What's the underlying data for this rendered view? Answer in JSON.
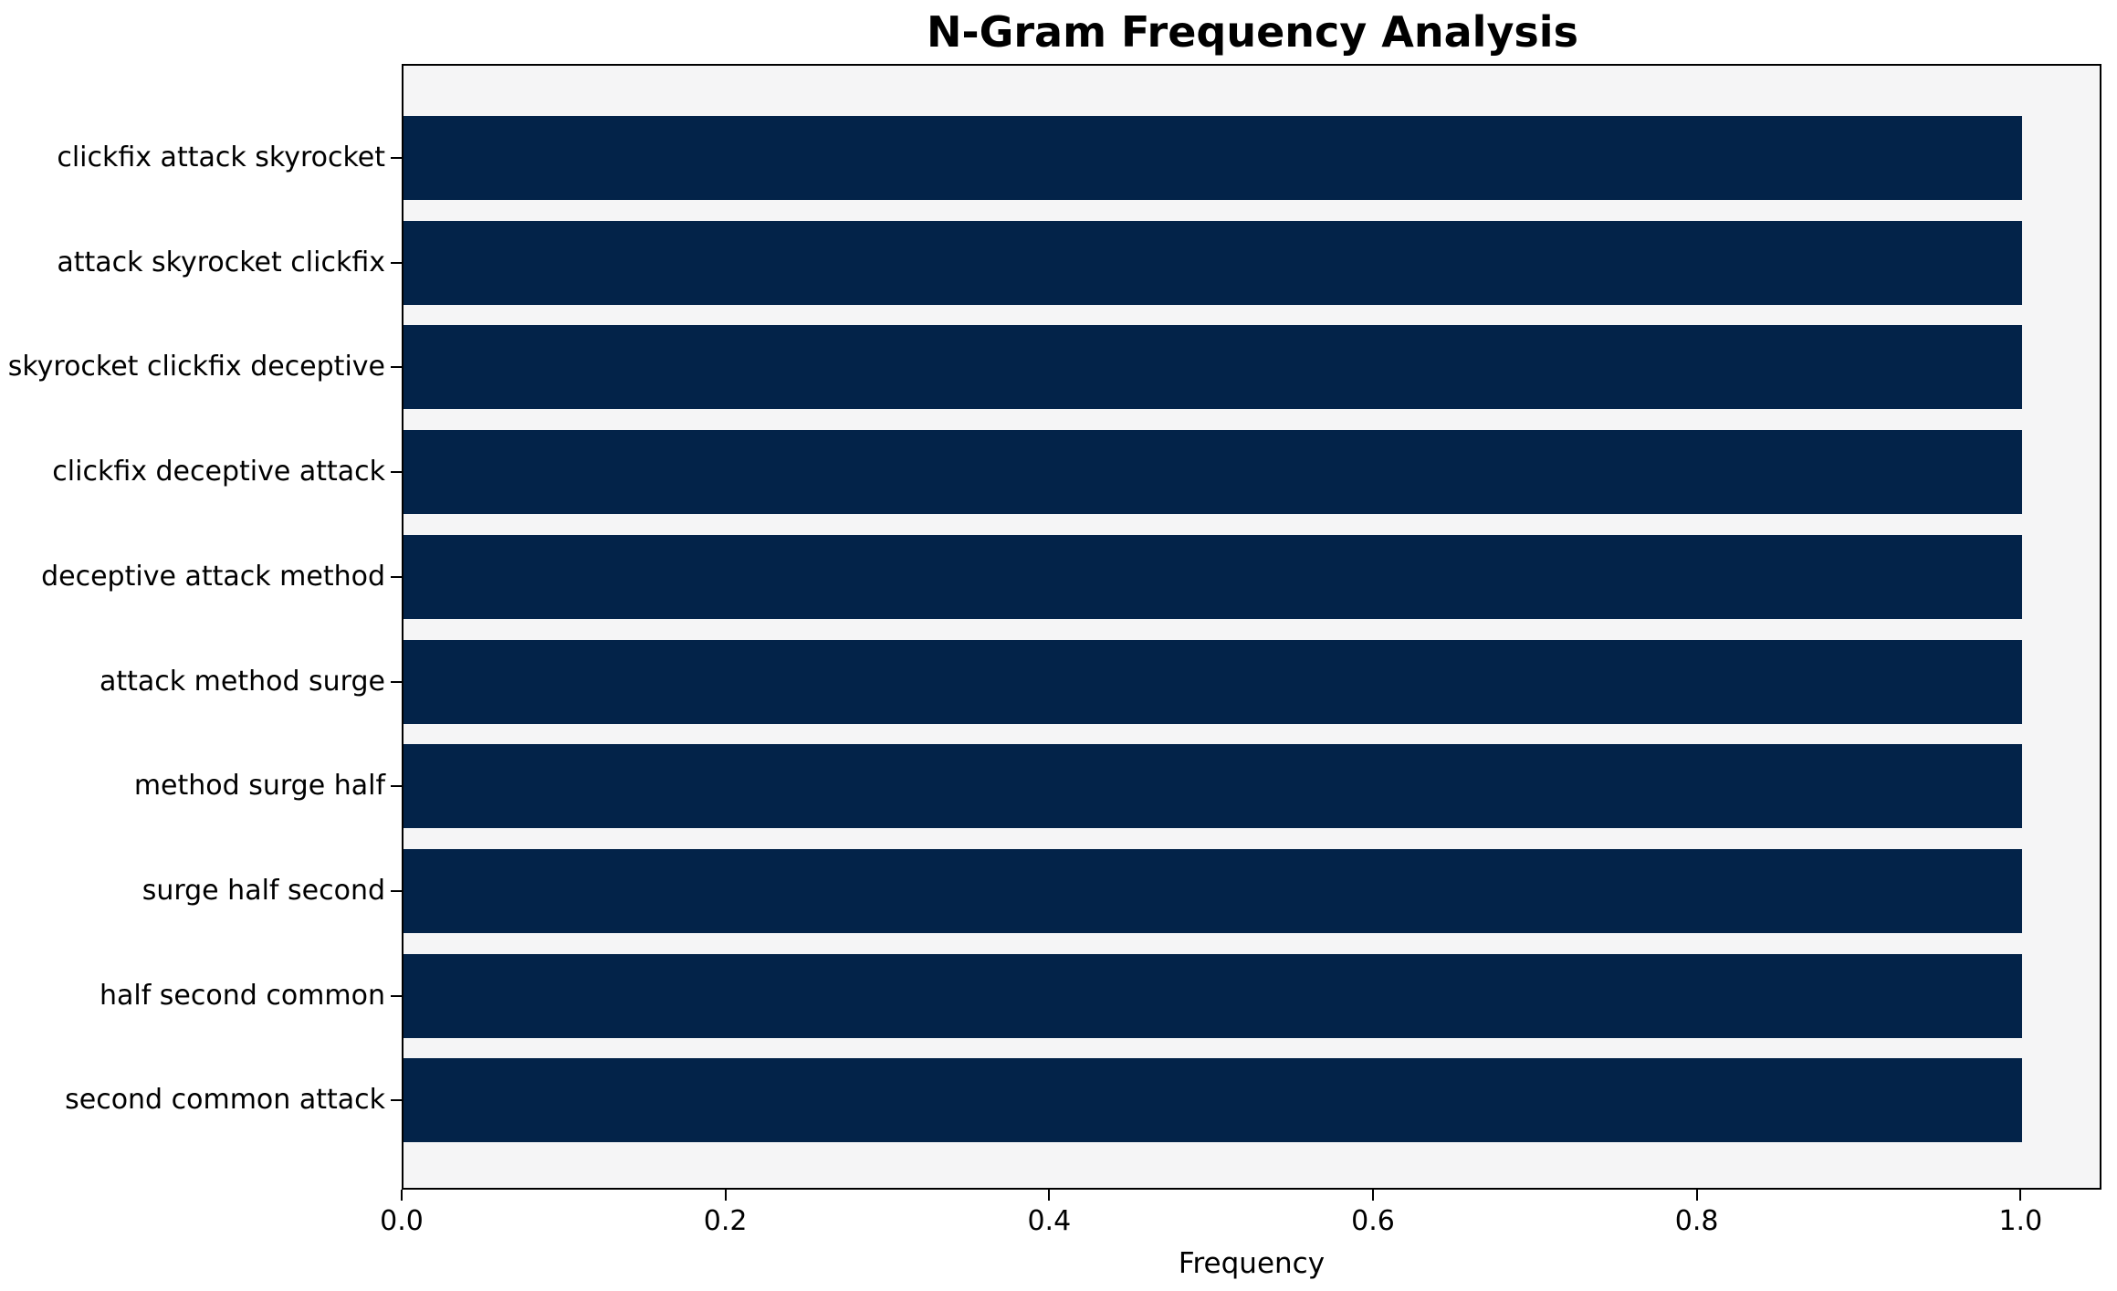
{
  "chart_data": {
    "type": "bar",
    "orientation": "horizontal",
    "title": "N-Gram Frequency Analysis",
    "xlabel": "Frequency",
    "ylabel": "",
    "categories": [
      "clickfix attack skyrocket",
      "attack skyrocket clickfix",
      "skyrocket clickfix deceptive",
      "clickfix deceptive attack",
      "deceptive attack method",
      "attack method surge",
      "method surge half",
      "surge half second",
      "half second common",
      "second common attack"
    ],
    "values": [
      1.0,
      1.0,
      1.0,
      1.0,
      1.0,
      1.0,
      1.0,
      1.0,
      1.0,
      1.0
    ],
    "x_ticks": [
      0.0,
      0.2,
      0.4,
      0.6,
      0.8,
      1.0
    ],
    "x_tick_labels": [
      "0.0",
      "0.2",
      "0.4",
      "0.6",
      "0.8",
      "1.0"
    ],
    "xlim": [
      0,
      1.05
    ],
    "grid": false,
    "legend": null,
    "bar_color": "#032349",
    "plot_background": "#f5f5f6",
    "figure_background": "#ffffff",
    "axis_color": "#000000",
    "text_color": "#000000"
  }
}
